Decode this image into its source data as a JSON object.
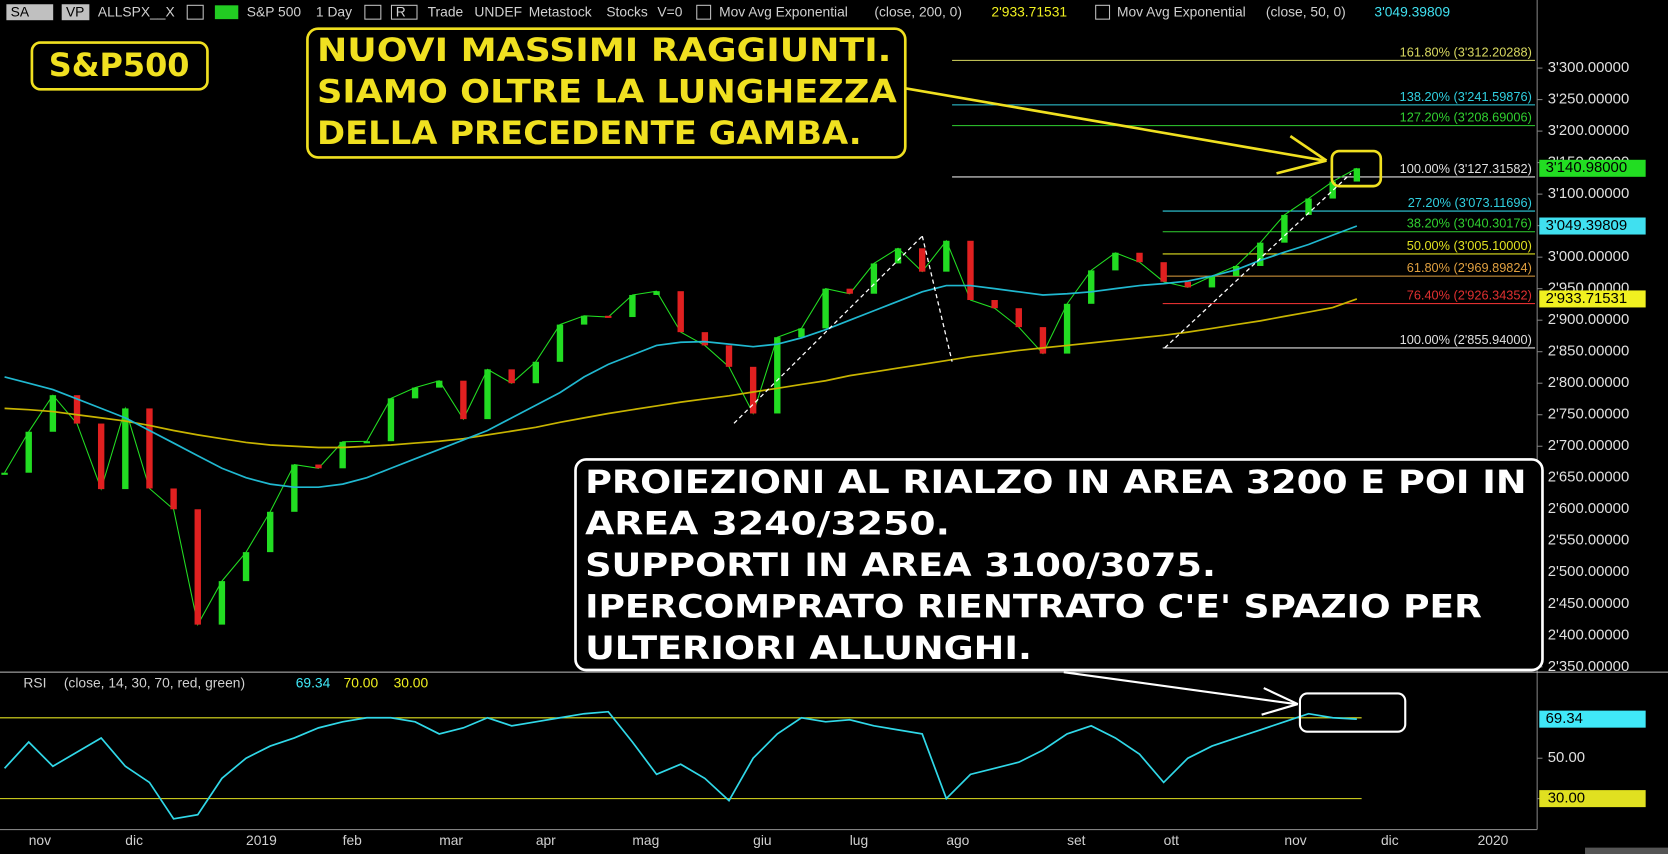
{
  "toolbar": {
    "symbol_type": "SA",
    "vp": "VP",
    "symbol": "ALLSPX__X",
    "period": "1 Day",
    "r": "R",
    "mode": "Trade",
    "status": "UNDEF",
    "source": "Metastock",
    "asset": "Stocks",
    "volume": "V=0"
  },
  "annotations": {
    "label": "S&P500",
    "headline": [
      "NUOVI MASSIMI RAGGIUNTI.",
      "SIAMO OLTRE LA LUNGHEZZA",
      "DELLA PRECEDENTE GAMBA."
    ],
    "note": [
      "PROIEZIONI AL RIALZO IN AREA 3200 E POI IN",
      "AREA 3240/3250.",
      "SUPPORTI IN AREA 3100/3075.",
      "IPERCOMPRATO RIENTRATO C'E' SPAZIO PER",
      "ULTERIORI ALLUNGHI."
    ]
  },
  "chart_data": [
    {
      "type": "line",
      "categories": [
        null,
        "nov",
        null,
        null,
        null,
        "dic",
        null,
        null,
        null,
        null,
        "2019",
        null,
        null,
        null,
        "feb",
        null,
        null,
        null,
        "mar",
        null,
        null,
        null,
        "apr",
        null,
        null,
        null,
        "mag",
        null,
        null,
        null,
        null,
        "giu",
        null,
        null,
        null,
        "lug",
        null,
        null,
        null,
        "ago",
        null,
        null,
        null,
        null,
        "set",
        null,
        null,
        null,
        "ott",
        null,
        null,
        null,
        null,
        "nov",
        null,
        null,
        null,
        "dic",
        null,
        null,
        null,
        "2020"
      ],
      "ylim": [
        2341.6,
        3408
      ],
      "yticks": [
        {
          "value": 2350,
          "label": "2'350.00000"
        },
        {
          "value": 2400,
          "label": "2'400.00000"
        },
        {
          "value": 2450,
          "label": "2'450.00000"
        },
        {
          "value": 2500,
          "label": "2'500.00000"
        },
        {
          "value": 2550,
          "label": "2'550.00000"
        },
        {
          "value": 2600,
          "label": "2'600.00000"
        },
        {
          "value": 2650,
          "label": "2'650.00000"
        },
        {
          "value": 2700,
          "label": "2'700.00000"
        },
        {
          "value": 2750,
          "label": "2'750.00000"
        },
        {
          "value": 2800,
          "label": "2'800.00000"
        },
        {
          "value": 2850,
          "label": "2'850.00000"
        },
        {
          "value": 2900,
          "label": "2'900.00000"
        },
        {
          "value": 2950,
          "label": "2'950.00000"
        },
        {
          "value": 3000,
          "label": "3'000.00000"
        },
        {
          "value": 3050,
          "label": "3'050.00000"
        },
        {
          "value": 3100,
          "label": "3'100.00000"
        },
        {
          "value": 3150,
          "label": "3'150.00000"
        },
        {
          "value": 3200,
          "label": "3'200.00000"
        },
        {
          "value": 3250,
          "label": "3'250.00000"
        },
        {
          "value": 3300,
          "label": "3'300.00000"
        }
      ],
      "series": [
        {
          "name": "S&P 500",
          "color": "#22dd22",
          "down_color": "#e02020",
          "badge_color": "#22dd22",
          "last_label": "3'140.98000",
          "values": [
            2658,
            2723,
            2781,
            2736,
            2632,
            2760,
            2633,
            2600,
            2417,
            2486,
            2532,
            2596,
            2671,
            2665,
            2707,
            2708,
            2776,
            2793,
            2804,
            2743,
            2822,
            2800,
            2834,
            2893,
            2907,
            2905,
            2940,
            2946,
            2881,
            2860,
            2826,
            2752,
            2873,
            2887,
            2950,
            2942,
            2990,
            3014,
            2977,
            3026,
            2932,
            2919,
            2889,
            2847,
            2926,
            2979,
            3007,
            2992,
            2961,
            2952,
            2970,
            2986,
            3023,
            3067,
            3093,
            3120,
            3140.98,
            null,
            null,
            null,
            null,
            null
          ]
        },
        {
          "name": "Mov Avg Exponential",
          "params": "(close, 200, 0)",
          "color": "#c8b400",
          "badge_color": "#f0f020",
          "last_label": "2'933.71531",
          "values": [
            2760,
            2758,
            2755,
            2750,
            2745,
            2740,
            2733,
            2725,
            2718,
            2712,
            2706,
            2702,
            2700,
            2698,
            2698,
            2700,
            2702,
            2705,
            2708,
            2712,
            2718,
            2724,
            2730,
            2738,
            2745,
            2752,
            2758,
            2764,
            2770,
            2775,
            2780,
            2786,
            2792,
            2798,
            2804,
            2812,
            2818,
            2824,
            2830,
            2836,
            2842,
            2847,
            2852,
            2856,
            2860,
            2864,
            2868,
            2872,
            2876,
            2881,
            2887,
            2893,
            2899,
            2906,
            2913,
            2920,
            2933.71531,
            null,
            null,
            null,
            null,
            null
          ]
        },
        {
          "name": "Mov Avg Exponential",
          "params": "(close, 50, 0)",
          "color": "#20b8d0",
          "badge_color": "#40e0f0",
          "last_label": "3'049.39809",
          "values": [
            2810,
            2800,
            2790,
            2775,
            2760,
            2745,
            2725,
            2705,
            2685,
            2665,
            2650,
            2640,
            2635,
            2635,
            2640,
            2650,
            2665,
            2680,
            2695,
            2710,
            2725,
            2745,
            2765,
            2785,
            2810,
            2830,
            2845,
            2860,
            2865,
            2866,
            2862,
            2858,
            2862,
            2872,
            2885,
            2900,
            2915,
            2930,
            2945,
            2955,
            2955,
            2950,
            2945,
            2940,
            2942,
            2945,
            2950,
            2955,
            2958,
            2962,
            2970,
            2980,
            2995,
            3008,
            3020,
            3035,
            3049.39809,
            null,
            null,
            null,
            null,
            null
          ]
        }
      ],
      "fib_levels": [
        {
          "label": "161.80% (3'312.20288)",
          "value": 3312.20288,
          "color": "#d8d860"
        },
        {
          "label": "138.20% (3'241.59876)",
          "value": 3241.59876,
          "color": "#30d0e0"
        },
        {
          "label": "127.20% (3'208.69006)",
          "value": 3208.69006,
          "color": "#30d030"
        },
        {
          "label": "100.00% (3'127.31582)",
          "value": 3127.31582,
          "color": "#e0e0e0"
        },
        {
          "label": "27.20% (3'073.11696)",
          "value": 3073.11696,
          "color": "#30d0e0"
        },
        {
          "label": "38.20% (3'040.30176)",
          "value": 3040.30176,
          "color": "#30d030"
        },
        {
          "label": "50.00% (3'005.10000)",
          "value": 3005.1,
          "color": "#e0e020"
        },
        {
          "label": "61.80% (2'969.89824)",
          "value": 2969.89824,
          "color": "#e0a040"
        },
        {
          "label": "76.40% (2'926.34352)",
          "value": 2926.34352,
          "color": "#e03030"
        },
        {
          "label": "100.00% (2'855.94000)",
          "value": 2855.94,
          "color": "#e0e0e0"
        }
      ]
    },
    {
      "type": "line",
      "title": "RSI",
      "params": "(close, 14, 30, 70, red, green)",
      "ylim": [
        6.8,
        92.6
      ],
      "yticks": [
        {
          "value": 50,
          "label": "50.00"
        },
        {
          "value": 30,
          "label": "30.00"
        }
      ],
      "levels": [
        {
          "value": 70,
          "label": "70.00"
        },
        {
          "value": 30,
          "label": "30.00"
        }
      ],
      "level_color": "#e0e020",
      "series": [
        {
          "color": "#30d8e8",
          "badge_color": "#40e8f8",
          "last_label": "69.34",
          "values": [
            45,
            58,
            46,
            53,
            60,
            46,
            38,
            20,
            22,
            40,
            50,
            56,
            60,
            65,
            68,
            70,
            70,
            68,
            62,
            65,
            70,
            66,
            68,
            70,
            72,
            73,
            58,
            42,
            47,
            40,
            29,
            50,
            62,
            70,
            68,
            69,
            66,
            64,
            62,
            30,
            42,
            45,
            48,
            54,
            62,
            66,
            60,
            52,
            38,
            50,
            56,
            60,
            64,
            68,
            72,
            70,
            69.34,
            null,
            null,
            null,
            null,
            null
          ]
        }
      ]
    }
  ]
}
